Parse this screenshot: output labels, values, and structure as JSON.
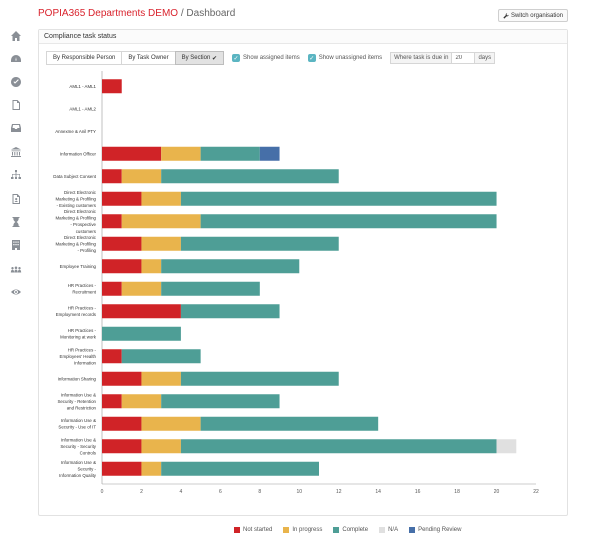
{
  "header": {
    "app_name": "POPIA365 Departments DEMO",
    "separator": " / ",
    "page": "Dashboard"
  },
  "switch_button": {
    "label": "Switch organisation",
    "icon": "wrench-icon"
  },
  "sidebar": {
    "icons": [
      "home-icon",
      "dashboard-gauge-icon",
      "check-circle-icon",
      "document-icon",
      "inbox-icon",
      "bank-icon",
      "sitemap-icon",
      "user-document-icon",
      "hourglass-icon",
      "building-icon",
      "people-icon",
      "eye-icon"
    ]
  },
  "panel": {
    "title": "Compliance task status"
  },
  "controls": {
    "tabs": [
      {
        "label": "By Responsible Person",
        "active": false
      },
      {
        "label": "By Task Owner",
        "active": false
      },
      {
        "label": "By Section",
        "active": true
      }
    ],
    "show_assigned": "Show assigned items",
    "show_unassigned": "Show unassigned items",
    "due_label": "Where task is due in",
    "due_value": "20",
    "due_unit": "days"
  },
  "colors": {
    "not_started": "#d02327",
    "in_progress": "#e9b44c",
    "complete": "#4e9e96",
    "na": "#e0e0e0",
    "pending_review": "#466fa8"
  },
  "chart_data": {
    "type": "bar",
    "orientation": "horizontal",
    "stacked": true,
    "x_ticks": [
      "0",
      "2",
      "4",
      "6",
      "8",
      "10",
      "12",
      "14",
      "16",
      "18",
      "20",
      "22"
    ],
    "xlim": [
      0,
      22
    ],
    "categories": [
      [
        "AML1 - AML1"
      ],
      [
        "AML1 - AML2"
      ],
      [
        "Annexme & Anil PTY"
      ],
      [
        "Information Officer"
      ],
      [
        "Data Subject Consent"
      ],
      [
        "Direct Electronic",
        "Marketing & Profiling",
        "- Existing customers"
      ],
      [
        "Direct Electronic",
        "Marketing & Profiling",
        "- Prospective",
        "customers"
      ],
      [
        "Direct Electronic",
        "Marketing & Profiling",
        "- Profiling"
      ],
      [
        "Employee Training"
      ],
      [
        "HR Practices -",
        "Recruitment"
      ],
      [
        "HR Practices -",
        "Employment records"
      ],
      [
        "HR Practices -",
        "Monitoring at work"
      ],
      [
        "HR Practices -",
        "Employees' Health",
        "Information"
      ],
      [
        "Information Sharing"
      ],
      [
        "Information Use &",
        "Security - Retention",
        "and Restriction"
      ],
      [
        "Information Use &",
        "Security - Use of IT"
      ],
      [
        "Information Use &",
        "Security - Security",
        "Controls"
      ],
      [
        "Information Use &",
        "Security -",
        "Information Quality"
      ]
    ],
    "series": [
      {
        "name": "Not started",
        "key": "not_started",
        "values": [
          1,
          0,
          0,
          3,
          1,
          2,
          1,
          2,
          2,
          1,
          4,
          0,
          1,
          2,
          1,
          2,
          2,
          2
        ]
      },
      {
        "name": "In progress",
        "key": "in_progress",
        "values": [
          0,
          0,
          0,
          2,
          2,
          2,
          4,
          2,
          1,
          2,
          0,
          0,
          0,
          2,
          2,
          3,
          2,
          1
        ]
      },
      {
        "name": "Complete",
        "key": "complete",
        "values": [
          0,
          0,
          0,
          3,
          9,
          16,
          15,
          8,
          7,
          5,
          5,
          4,
          4,
          8,
          6,
          9,
          16,
          8
        ]
      },
      {
        "name": "N/A",
        "key": "na",
        "values": [
          0,
          0,
          0,
          0,
          0,
          0,
          0,
          0,
          0,
          0,
          0,
          0,
          0,
          0,
          0,
          0,
          1,
          0
        ]
      },
      {
        "name": "Pending Review",
        "key": "pending_review",
        "values": [
          0,
          0,
          0,
          1,
          0,
          0,
          0,
          0,
          0,
          0,
          0,
          0,
          0,
          0,
          0,
          0,
          0,
          0
        ]
      }
    ]
  }
}
